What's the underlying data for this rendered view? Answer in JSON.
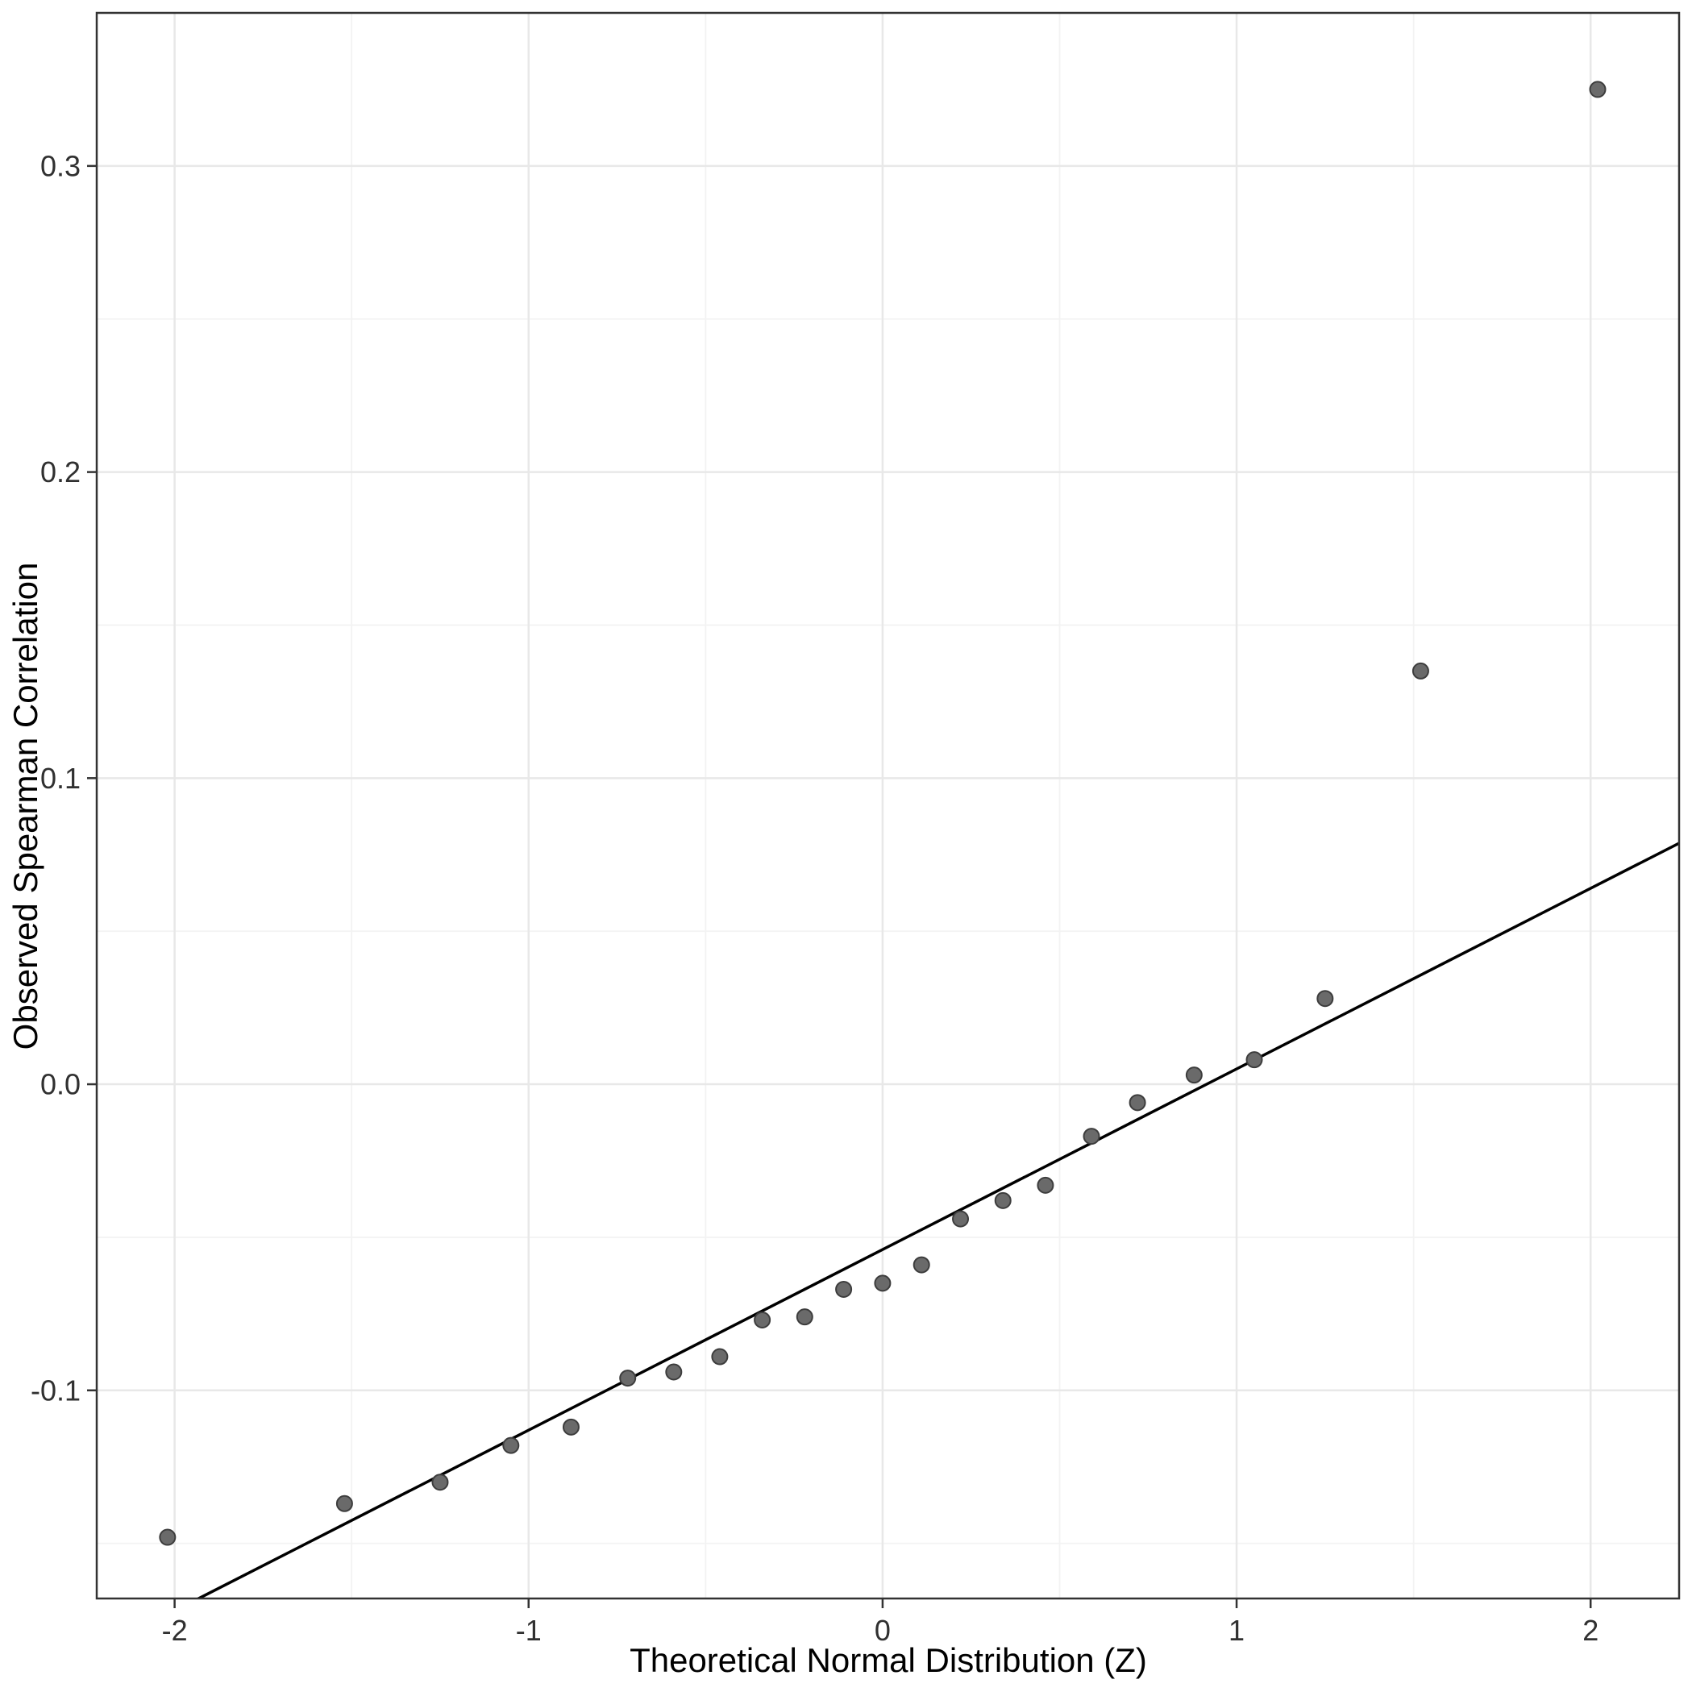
{
  "chart_data": {
    "type": "scatter",
    "title": "",
    "xlabel": "Theoretical Normal Distribution (Z)",
    "ylabel": "Observed Spearman Correlation",
    "xlim": [
      -2.22,
      2.25
    ],
    "ylim": [
      -0.168,
      0.35
    ],
    "grid": true,
    "legend": null,
    "x_ticks": {
      "values": [
        -2,
        -1,
        0,
        1,
        2
      ],
      "labels": [
        "-2",
        "-1",
        "0",
        "1",
        "2"
      ]
    },
    "y_ticks": {
      "values": [
        -0.1,
        0.0,
        0.1,
        0.2,
        0.3
      ],
      "labels": [
        "-0.1",
        "0.0",
        "0.1",
        "0.2",
        "0.3"
      ]
    },
    "x_minor_ticks": [
      -1.5,
      -0.5,
      0.5,
      1.5
    ],
    "y_minor_ticks": [
      -0.15,
      -0.05,
      0.05,
      0.15,
      0.25
    ],
    "points": [
      [
        -2.02,
        -0.148
      ],
      [
        -1.52,
        -0.137
      ],
      [
        -1.25,
        -0.13
      ],
      [
        -1.05,
        -0.118
      ],
      [
        -0.88,
        -0.112
      ],
      [
        -0.72,
        -0.096
      ],
      [
        -0.59,
        -0.094
      ],
      [
        -0.46,
        -0.089
      ],
      [
        -0.34,
        -0.077
      ],
      [
        -0.22,
        -0.076
      ],
      [
        -0.11,
        -0.067
      ],
      [
        0.0,
        -0.065
      ],
      [
        0.11,
        -0.059
      ],
      [
        0.22,
        -0.044
      ],
      [
        0.34,
        -0.038
      ],
      [
        0.46,
        -0.033
      ],
      [
        0.59,
        -0.017
      ],
      [
        0.72,
        -0.006
      ],
      [
        0.88,
        0.003
      ],
      [
        1.05,
        0.008
      ],
      [
        1.25,
        0.028
      ],
      [
        1.52,
        0.135
      ],
      [
        2.02,
        0.325
      ]
    ],
    "reference_line": {
      "slope": 0.059,
      "intercept": -0.054
    },
    "style": {
      "bg": "#ffffff",
      "grid_major": "#e8e8e8",
      "grid_minor": "#f3f3f3",
      "panel_border": "#333333",
      "tick_color": "#333333",
      "point_fill": "#6a6a6a",
      "point_stroke": "#3d3d3d",
      "line_color": "#000000",
      "text_color": "#303030",
      "title_color": "#000000"
    }
  }
}
